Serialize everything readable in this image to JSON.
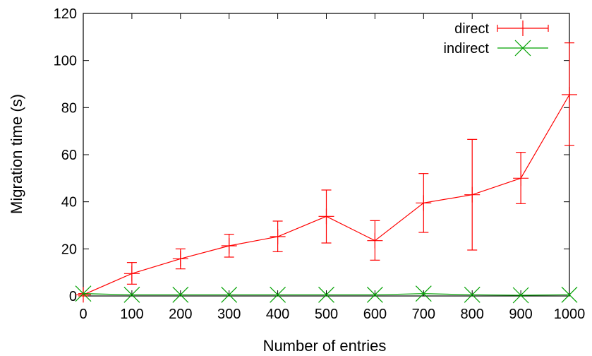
{
  "chart_data": {
    "type": "line",
    "xlabel": "Number of entries",
    "ylabel": "Migration time (s)",
    "xlim": [
      0,
      1000
    ],
    "ylim": [
      0,
      120
    ],
    "x_ticks": [
      "0",
      "100",
      "200",
      "300",
      "400",
      "500",
      "600",
      "700",
      "800",
      "900",
      "1000"
    ],
    "y_ticks": [
      "0",
      "20",
      "40",
      "60",
      "80",
      "100",
      "120"
    ],
    "grid": false,
    "legend_position": "top-right",
    "x": [
      0,
      100,
      200,
      300,
      400,
      500,
      600,
      700,
      800,
      900,
      1000
    ],
    "series": [
      {
        "name": "direct",
        "color": "#ff0000",
        "marker": "plus",
        "values": [
          0.5,
          9.5,
          15.8,
          21.3,
          25.2,
          33.8,
          23.5,
          39.5,
          43,
          50,
          85.5
        ],
        "err_low": [
          0,
          5,
          11.5,
          16.5,
          18.8,
          22.5,
          15.2,
          27,
          19.5,
          39.2,
          64
        ],
        "err_high": [
          1,
          14.2,
          20,
          26.2,
          31.8,
          45,
          32,
          52,
          66.5,
          61,
          107.5
        ]
      },
      {
        "name": "indirect",
        "color": "#00a000",
        "marker": "cross",
        "values": [
          1,
          0.5,
          0.5,
          0.5,
          0.5,
          0.5,
          0.5,
          1,
          0.5,
          0.3,
          0.5
        ]
      }
    ]
  }
}
